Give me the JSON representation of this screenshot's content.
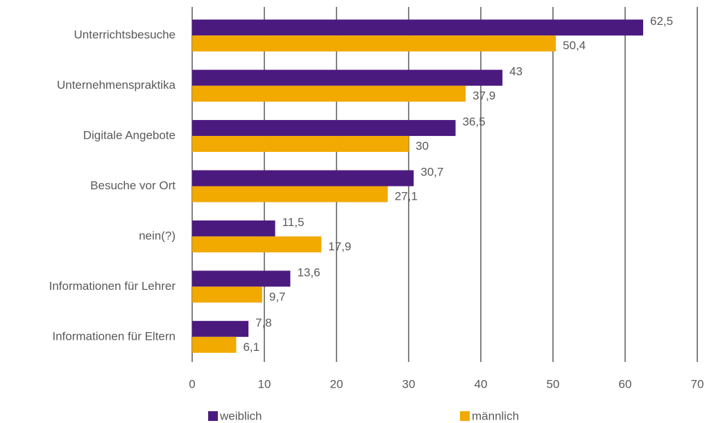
{
  "chart_data": {
    "type": "hbar",
    "categories": [
      "Unterrichtsbesuche",
      "Unternehmenspraktika",
      "Digitale Angebote",
      "Besuche vor Ort",
      "nein(?)",
      "Informationen für Lehrer",
      "Informationen für Eltern"
    ],
    "series": [
      {
        "name": "weiblich",
        "color": "#4b1a7f",
        "values": [
          62.5,
          43,
          36.5,
          30.7,
          11.5,
          13.6,
          7.8
        ],
        "value_labels": [
          "62,5",
          "43",
          "36,5",
          "30,7",
          "11,5",
          "13,6",
          "7,8"
        ]
      },
      {
        "name": "männlich",
        "color": "#f2a900",
        "values": [
          50.4,
          37.9,
          30,
          27.1,
          17.9,
          9.7,
          6.1
        ],
        "value_labels": [
          "50,4",
          "37,9",
          "30",
          "27,1",
          "17,9",
          "9,7",
          "6,1"
        ]
      }
    ],
    "xlim": [
      0,
      70
    ],
    "xticks": [
      0,
      10,
      20,
      30,
      40,
      50,
      60,
      70
    ],
    "grid": true,
    "legend": "bottom"
  }
}
